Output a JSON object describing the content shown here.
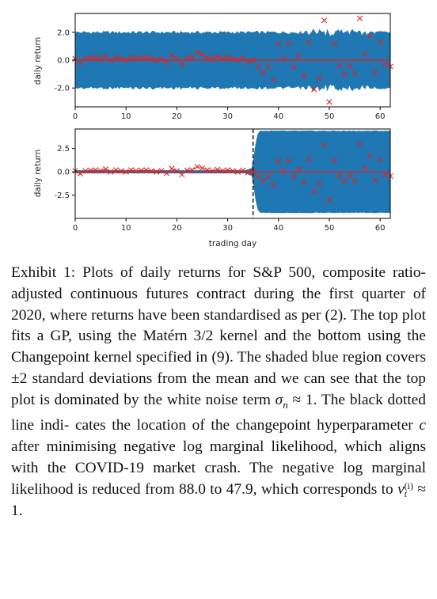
{
  "figure": {
    "x_ticks": [
      "0",
      "10",
      "20",
      "30",
      "40",
      "50",
      "60"
    ],
    "xlabel": "trading day",
    "colors": {
      "band": "#1f77b4",
      "mean": "#d62728",
      "obs": "#d62728",
      "changepoint": "#222222",
      "axis": "#000000"
    }
  },
  "chart_data": [
    {
      "type": "line",
      "name": "top",
      "ylabel": "daily return",
      "y_ticks": [
        "2.0",
        "0.0",
        "-2.0"
      ],
      "xlim": [
        0,
        62
      ],
      "ylim": [
        -3.35,
        3.35
      ],
      "grid": false,
      "mean": 0.0,
      "band": 2.0,
      "observations": {
        "x": [
          0,
          1,
          2,
          3,
          4,
          5,
          6,
          7,
          8,
          9,
          10,
          11,
          12,
          13,
          14,
          15,
          16,
          17,
          18,
          19,
          20,
          21,
          22,
          23,
          24,
          25,
          26,
          27,
          28,
          29,
          30,
          31,
          32,
          33,
          34,
          35,
          36,
          37,
          38,
          39,
          40,
          41,
          42,
          43,
          44,
          45,
          46,
          47,
          48,
          49,
          50,
          51,
          52,
          53,
          54,
          55,
          56,
          57,
          58,
          59,
          60,
          61,
          62
        ],
        "y": [
          0.1,
          -0.2,
          0.1,
          0.15,
          0.2,
          0.1,
          0.3,
          0.0,
          0.2,
          0.1,
          0.0,
          0.2,
          0.1,
          0.15,
          0.2,
          0.1,
          0.0,
          0.1,
          -0.15,
          0.35,
          0.1,
          -0.3,
          0.15,
          0.2,
          0.55,
          0.4,
          0.2,
          0.1,
          0.25,
          0.1,
          0.2,
          0.1,
          0.0,
          0.15,
          -0.1,
          0.0,
          -0.5,
          -0.95,
          -0.5,
          -1.4,
          1.15,
          0.1,
          1.2,
          -0.5,
          0.3,
          -1.1,
          1.3,
          -2.1,
          -1.3,
          2.85,
          -3.0,
          1.2,
          -0.4,
          -1.0,
          -0.4,
          -0.95,
          3.0,
          0.45,
          1.75,
          -0.9,
          1.3,
          -0.3,
          -0.45
        ]
      }
    },
    {
      "type": "line",
      "name": "bottom",
      "ylabel": "daily return",
      "y_ticks": [
        "2.5",
        "0.0",
        "-2.5"
      ],
      "xlim": [
        0,
        62
      ],
      "ylim": [
        -5.0,
        4.6
      ],
      "grid": false,
      "mean": 0.0,
      "changepoint": 35,
      "band_before": 0.17,
      "band_after": 4.4,
      "observations": {
        "x": [
          0,
          1,
          2,
          3,
          4,
          5,
          6,
          7,
          8,
          9,
          10,
          11,
          12,
          13,
          14,
          15,
          16,
          17,
          18,
          19,
          20,
          21,
          22,
          23,
          24,
          25,
          26,
          27,
          28,
          29,
          30,
          31,
          32,
          33,
          34,
          35,
          36,
          37,
          38,
          39,
          40,
          41,
          42,
          43,
          44,
          45,
          46,
          47,
          48,
          49,
          50,
          51,
          52,
          53,
          54,
          55,
          56,
          57,
          58,
          59,
          60,
          61,
          62
        ],
        "y": [
          0.1,
          -0.2,
          0.1,
          0.15,
          0.2,
          0.1,
          0.3,
          0.0,
          0.2,
          0.1,
          0.0,
          0.2,
          0.1,
          0.15,
          0.2,
          0.1,
          0.0,
          0.1,
          -0.15,
          0.35,
          0.1,
          -0.3,
          0.15,
          0.2,
          0.55,
          0.4,
          0.2,
          0.1,
          0.25,
          0.1,
          0.2,
          0.1,
          0.0,
          0.15,
          -0.1,
          0.0,
          -0.5,
          -0.95,
          -0.5,
          -1.4,
          1.15,
          0.1,
          1.2,
          -0.5,
          0.3,
          -1.1,
          1.3,
          -2.1,
          -1.3,
          2.85,
          -3.0,
          1.2,
          -0.4,
          -1.0,
          -0.4,
          -0.95,
          3.0,
          0.45,
          1.75,
          -0.9,
          1.3,
          -0.3,
          -0.45
        ]
      }
    }
  ],
  "caption": {
    "l1": "Exhibit 1: Plots of daily returns for S&P 500,",
    "l2": "composite ratio-adjusted continuous futures contract",
    "l3": "during the first quarter of 2020, where returns have",
    "l4": "been standardised as per (2). The top plot fits a GP,",
    "l5": "using the Matérn 3/2 kernel and the bottom using the",
    "l6": "Changepoint kernel specified in (9). The shaded blue",
    "l7": "region covers ±2 standard deviations from the mean",
    "l8": "and we can see that the top plot is dominated by the",
    "l9a": "white noise term ",
    "l9_sigma": "σ",
    "l9_sub": "n",
    "l9b": " ≈ 1. The black dotted line indi-",
    "l10": "cates the location of the changepoint hyperparameter",
    "l11a": "c",
    "l11b": " after minimising negative log marginal likelihood,",
    "l12": "which aligns with the COVID-19 market crash. The",
    "l13": "negative log marginal likelihood is reduced from",
    "l14a": "88.0 to 47.9, which corresponds to ",
    "l14_nu": "ν",
    "l14_sup": "(i)",
    "l14_sub": "t",
    "l14b": " ≈ 1."
  }
}
